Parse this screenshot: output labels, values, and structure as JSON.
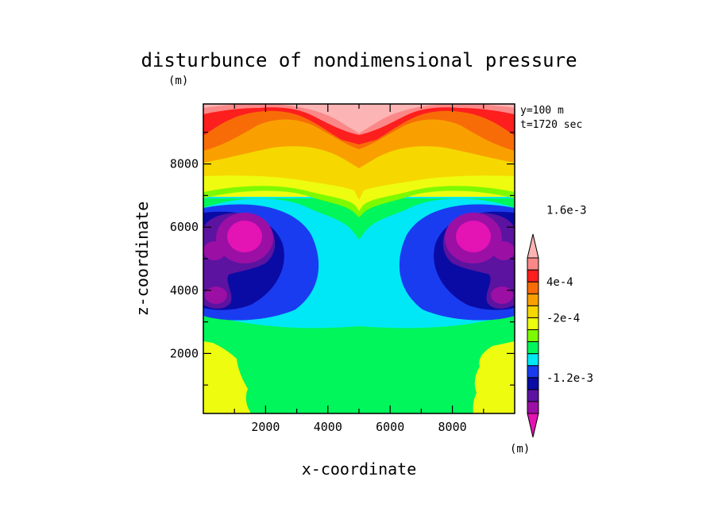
{
  "chart_data": {
    "type": "heatmap",
    "title": "disturbunce of nondimensional pressure",
    "title_unit": "(m)",
    "xlabel": "x-coordinate",
    "ylabel": "z-coordinate",
    "info": [
      "y=100 m",
      "t=1720 sec"
    ],
    "xlim": [
      0,
      10000
    ],
    "ylim": [
      100,
      9900
    ],
    "xticks": [
      2000,
      4000,
      6000,
      8000
    ],
    "yticks": [
      2000,
      4000,
      6000,
      8000
    ],
    "xtick_labels": [
      "2000",
      "4000",
      "6000",
      "8000"
    ],
    "ytick_labels": [
      "2000",
      "4000",
      "6000",
      "8000"
    ],
    "colorbar": {
      "unit": "(m)",
      "colors": [
        "#e413b4",
        "#9b0fa5",
        "#5b13a0",
        "#0a0ba5",
        "#1a3cf0",
        "#00e8f6",
        "#00f65a",
        "#7dfa00",
        "#eefc10",
        "#f6d800",
        "#f9a000",
        "#f86c08",
        "#fd1e1e",
        "#fb8888",
        "#fcb4b4"
      ],
      "labels": [
        {
          "value": -0.0012,
          "text": "-1.2e-3"
        },
        {
          "value": -0.0002,
          "text": "-2e-4"
        },
        {
          "value": 0.0004,
          "text": "4e-4"
        },
        {
          "value": 0.0016,
          "text": "1.6e-3"
        }
      ]
    }
  }
}
